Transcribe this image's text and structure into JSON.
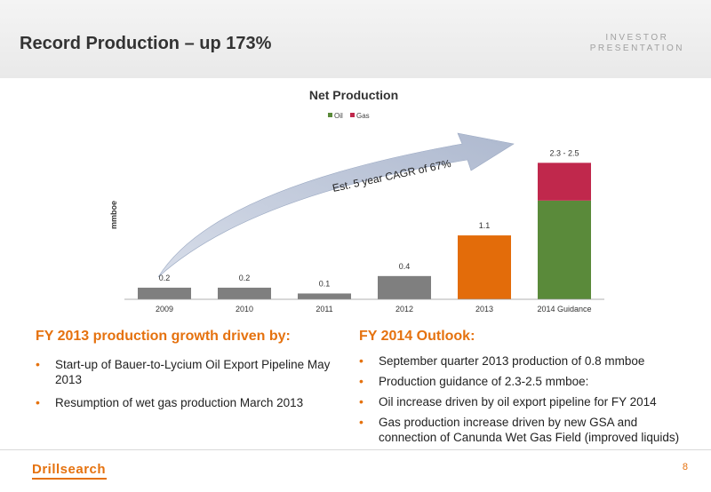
{
  "slide": {
    "title": "Record Production – up 173%",
    "header_tag_line1": "INVESTOR",
    "header_tag_line2": "PRESENTATION",
    "page_number": "8"
  },
  "logo": {
    "text": "Drillsearch"
  },
  "chart_data": {
    "type": "bar",
    "title": "Net Production",
    "ylabel": "mmboe",
    "xlabel": "",
    "ylim": [
      0,
      2.6
    ],
    "categories": [
      "2009",
      "2010",
      "2011",
      "2012",
      "2013",
      "2014 Guidance"
    ],
    "legend": {
      "placement": "top",
      "entries": [
        "Oil",
        "Gas"
      ]
    },
    "bars": [
      {
        "category": "2009",
        "value": 0.2,
        "label": "0.2",
        "color": "#7f7f7f"
      },
      {
        "category": "2010",
        "value": 0.2,
        "label": "0.2",
        "color": "#7f7f7f"
      },
      {
        "category": "2011",
        "value": 0.1,
        "label": "0.1",
        "color": "#7f7f7f"
      },
      {
        "category": "2012",
        "value": 0.4,
        "label": "0.4",
        "color": "#7f7f7f"
      },
      {
        "category": "2013",
        "value": 1.1,
        "label": "1.1",
        "color": "#e36c0a"
      },
      {
        "category": "2014 Guidance",
        "stacked": true,
        "label": "2.3 - 2.5",
        "segments": [
          {
            "name": "Oil",
            "value": 1.7,
            "color": "#5a8a3a"
          },
          {
            "name": "Gas",
            "value": 0.65,
            "color": "#c0284c"
          }
        ]
      }
    ],
    "series_colors": {
      "Oil": "#5a8a3a",
      "Gas": "#c0284c"
    },
    "annotation": "Est. 5 year CAGR of 67%",
    "grid": false
  },
  "left_panel": {
    "title": "FY 2013 production growth driven by:",
    "bullets": [
      "Start-up of Bauer-to-Lycium Oil Export Pipeline May 2013",
      "Resumption of wet gas production March 2013"
    ]
  },
  "right_panel": {
    "title": "FY 2014 Outlook:",
    "bullets": [
      "September quarter 2013 production of 0.8 mmboe",
      "Production guidance of 2.3-2.5 mmboe:",
      "Oil increase driven by oil export pipeline for FY 2014",
      "Gas production increase driven by new GSA and connection of Canunda Wet Gas Field (improved liquids)"
    ]
  }
}
